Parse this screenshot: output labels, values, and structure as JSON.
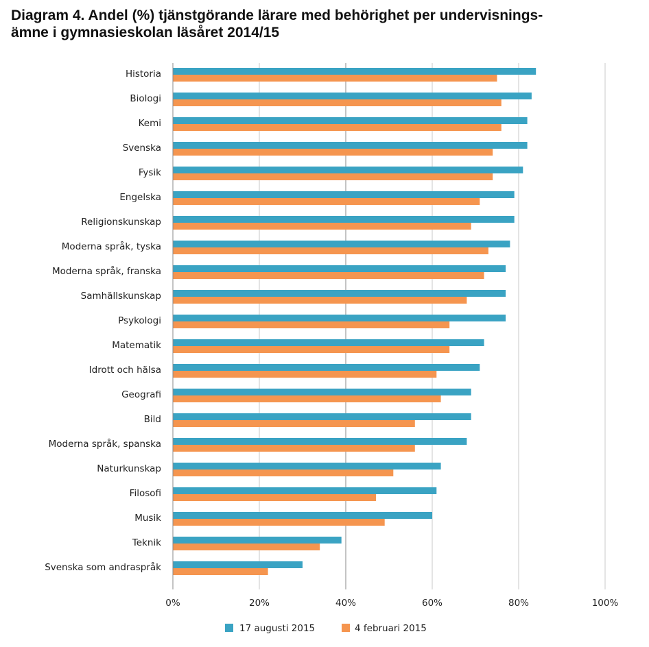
{
  "title_line1": "Diagram 4. Andel (%) tjänstgörande lärare med behörighet per undervisnings-",
  "title_line2": "ämne i gymnasieskolan läsåret 2014/15",
  "chart_data": {
    "type": "bar",
    "orientation": "horizontal",
    "categories": [
      "Historia",
      "Biologi",
      "Kemi",
      "Svenska",
      "Fysik",
      "Engelska",
      "Religionskunskap",
      "Moderna språk, tyska",
      "Moderna språk, franska",
      "Samhällskunskap",
      "Psykologi",
      "Matematik",
      "Idrott och hälsa",
      "Geografi",
      "Bild",
      "Moderna språk, spanska",
      "Naturkunskap",
      "Filosofi",
      "Musik",
      "Teknik",
      "Svenska som andraspråk"
    ],
    "series": [
      {
        "name": "17 augusti 2015",
        "color": "#3aa3c3",
        "values": [
          84,
          83,
          82,
          82,
          81,
          79,
          79,
          78,
          77,
          77,
          77,
          72,
          71,
          69,
          69,
          68,
          62,
          61,
          60,
          39,
          30
        ]
      },
      {
        "name": "4 februari 2015",
        "color": "#f5954f",
        "values": [
          75,
          76,
          76,
          74,
          74,
          71,
          69,
          73,
          72,
          68,
          64,
          64,
          61,
          62,
          56,
          56,
          51,
          47,
          49,
          34,
          22
        ]
      }
    ],
    "xlim": [
      0,
      100
    ],
    "xticks": [
      "0%",
      "20%",
      "40%",
      "60%",
      "80%",
      "100%"
    ],
    "grid": true,
    "legend_position": "bottom"
  }
}
